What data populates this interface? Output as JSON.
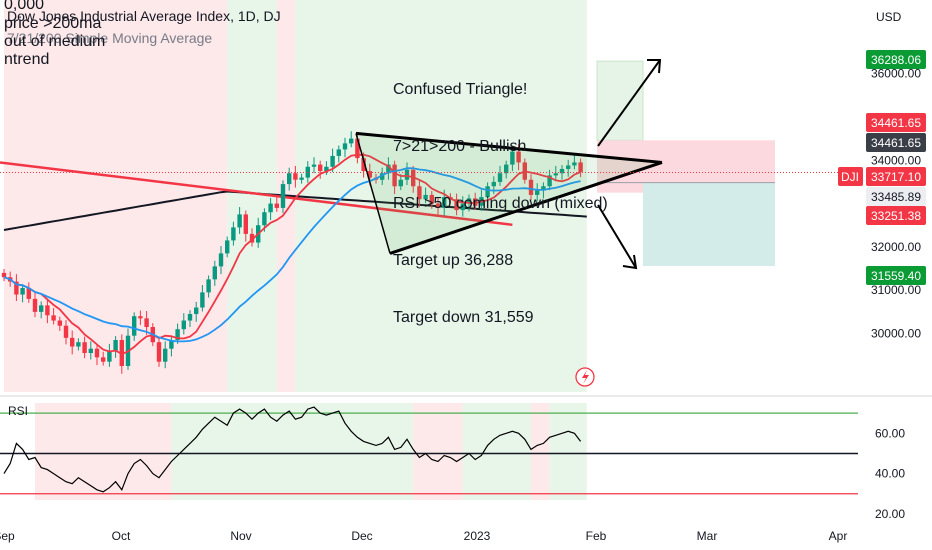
{
  "header": {
    "title": "Dow Jones Industrial Average Index, 1D, DJ",
    "ma_legend": "7/21/200 Simple Moving Average",
    "overlay_lines": [
      "0,000",
      "price >200ma",
      "out of medium",
      "ntrend"
    ]
  },
  "currency": "USD",
  "annotation": {
    "lines": [
      "Confused Triangle!",
      "7>21>200 - Bullish",
      "RSI >50 coming down (mixed)",
      "Target up 36,288",
      "Target down 31,559"
    ]
  },
  "symbol": "DJI",
  "colors": {
    "up": "#089981",
    "down": "#f23645",
    "ma7": "#f23645",
    "ma21": "#2196f3",
    "ma200": "#131722",
    "bull_zone": "#e8f5e9",
    "bear_zone": "#fde8ea",
    "target_up": "#0b9b35",
    "target_down": "#0b9b35",
    "price_tag": "#f23645"
  },
  "chart_data": [
    {
      "type": "candlestick",
      "title": "Dow Jones Industrial Average Index, 1D, DJ",
      "x_ticks": [
        "Sep",
        "Oct",
        "Nov",
        "Dec",
        "2023",
        "Feb",
        "Mar",
        "Apr"
      ],
      "y_ticks": [
        30000,
        31000,
        32000,
        33000,
        34000,
        36000
      ],
      "y_unit": "USD",
      "ylim": [
        28650,
        37700
      ],
      "candles_daily_close": [
        31300,
        31200,
        30900,
        31050,
        30800,
        30500,
        30650,
        30420,
        30300,
        30180,
        29900,
        29700,
        29800,
        29550,
        29650,
        29450,
        29350,
        29590,
        29850,
        29250,
        29950,
        30400,
        30350,
        30150,
        29800,
        29350,
        29650,
        29850,
        30100,
        30300,
        30450,
        30600,
        30950,
        31250,
        31550,
        31850,
        32150,
        32450,
        32750,
        32300,
        32100,
        32500,
        32800,
        33000,
        32900,
        33450,
        33700,
        33550,
        33600,
        33850,
        33900,
        33750,
        33850,
        34100,
        34250,
        34390,
        34500,
        34050,
        33750,
        33600,
        33550,
        33700,
        33900,
        33400,
        33550,
        33780,
        33400,
        33100,
        33200,
        33000,
        32900,
        33150,
        33100,
        32850,
        33000,
        33120,
        32950,
        33150,
        33400,
        33500,
        33700,
        33900,
        34200,
        33950,
        33550,
        33200,
        33300,
        33400,
        33650,
        33700,
        33800,
        33880,
        33950,
        33730
      ],
      "moving_averages": [
        {
          "name": "7",
          "color": "#f23645"
        },
        {
          "name": "21",
          "color": "#2196f3"
        },
        {
          "name": "200",
          "color": "#131722"
        }
      ],
      "price_labels": [
        {
          "value": "36288.06",
          "kind": "target-up"
        },
        {
          "value": "34461.65",
          "kind": "red"
        },
        {
          "value": "34461.65",
          "kind": "dark"
        },
        {
          "value": "33717.10",
          "kind": "last",
          "symbol": "DJI"
        },
        {
          "value": "33485.89",
          "kind": "light"
        },
        {
          "value": "33251.38",
          "kind": "red"
        },
        {
          "value": "31559.40",
          "kind": "target-down"
        }
      ],
      "triangle": {
        "apex_price": 33950,
        "upper_start": 34620,
        "lower_start": 31850
      },
      "targets": {
        "up": 36288,
        "down": 31559
      }
    },
    {
      "type": "line",
      "title": "RSI",
      "y_ticks": [
        20,
        40,
        60
      ],
      "levels": [
        70,
        50,
        30
      ],
      "ylim": [
        17,
        78
      ],
      "values": [
        40,
        45,
        55,
        52,
        47,
        48,
        43,
        42,
        40,
        38,
        36,
        35,
        38,
        36,
        34,
        32,
        31,
        33,
        36,
        32,
        40,
        45,
        47,
        44,
        40,
        38,
        42,
        46,
        49,
        52,
        55,
        58,
        62,
        65,
        68,
        66,
        64,
        70,
        72,
        70,
        67,
        70,
        72,
        68,
        66,
        69,
        71,
        67,
        68,
        72,
        73,
        70,
        69,
        70,
        71,
        65,
        61,
        58,
        56,
        55,
        54,
        55,
        58,
        52,
        53,
        57,
        52,
        48,
        50,
        47,
        46,
        49,
        48,
        46,
        48,
        50,
        47,
        49,
        54,
        57,
        59,
        60,
        61,
        60,
        57,
        52,
        54,
        55,
        58,
        59,
        60,
        61,
        60,
        56
      ]
    }
  ]
}
